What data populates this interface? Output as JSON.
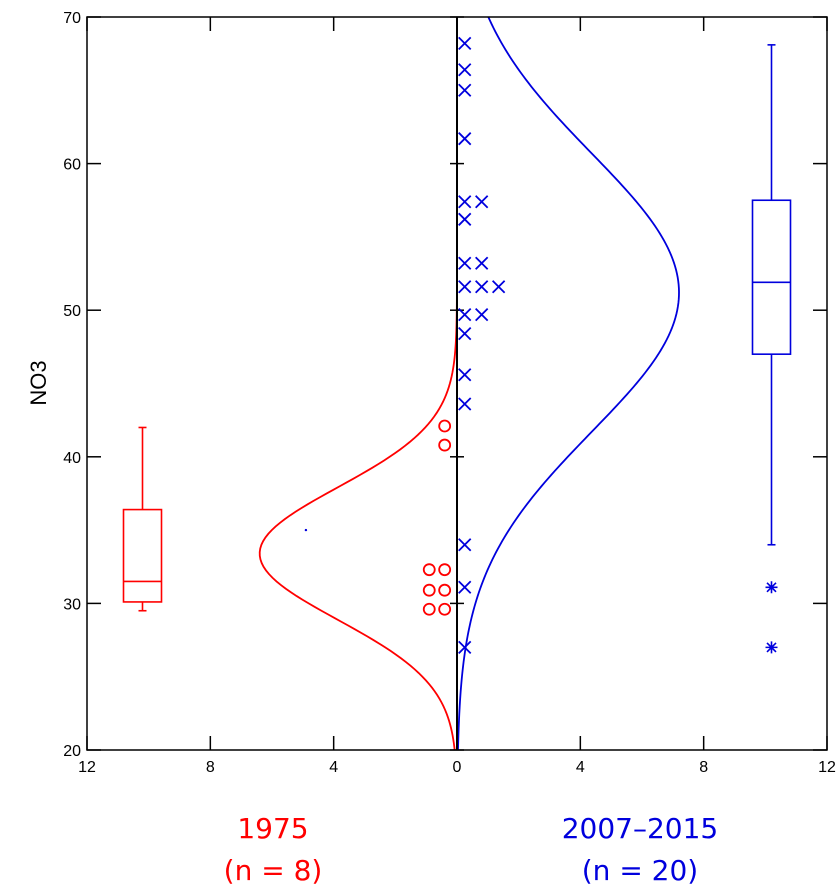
{
  "chart_data": {
    "type": "scatter",
    "ylabel": "NO3",
    "xlabel": "",
    "ylim": [
      20,
      70
    ],
    "y_ticks": [
      20,
      30,
      40,
      50,
      60,
      70
    ],
    "xlim_left": [
      12,
      0
    ],
    "xlim_right": [
      0,
      12
    ],
    "x_tick_labels": [
      "12",
      "8",
      "4",
      "0",
      "4",
      "8",
      "12"
    ],
    "groups": [
      {
        "name": "1975",
        "n_label": "(n = 8)",
        "color": "#ff0000",
        "side": "left",
        "marker": "circle",
        "points": [
          {
            "offset": 0.4,
            "y": 42.1
          },
          {
            "offset": 0.4,
            "y": 40.8
          },
          {
            "offset": 0.4,
            "y": 32.3
          },
          {
            "offset": 0.9,
            "y": 32.3
          },
          {
            "offset": 0.4,
            "y": 30.9
          },
          {
            "offset": 0.9,
            "y": 30.9
          },
          {
            "offset": 0.4,
            "y": 29.6
          },
          {
            "offset": 0.9,
            "y": 29.6
          }
        ],
        "density": {
          "mean": 33.4,
          "sd": 4.5,
          "peak": 6.4
        },
        "boxplot": {
          "x": 10.2,
          "min": 29.5,
          "q1": 30.1,
          "median": 31.5,
          "q3": 36.4,
          "max": 42.0,
          "outliers": []
        }
      },
      {
        "name": "2007–2015",
        "n_label": "(n = 20)",
        "color": "#0000dd",
        "side": "right",
        "marker": "x",
        "points": [
          {
            "offset": 0.25,
            "y": 68.2
          },
          {
            "offset": 0.25,
            "y": 66.4
          },
          {
            "offset": 0.25,
            "y": 65.0
          },
          {
            "offset": 0.25,
            "y": 61.7
          },
          {
            "offset": 0.25,
            "y": 57.4
          },
          {
            "offset": 0.8,
            "y": 57.4
          },
          {
            "offset": 0.25,
            "y": 56.2
          },
          {
            "offset": 0.25,
            "y": 53.2
          },
          {
            "offset": 0.8,
            "y": 53.2
          },
          {
            "offset": 0.25,
            "y": 51.6
          },
          {
            "offset": 0.8,
            "y": 51.6
          },
          {
            "offset": 1.35,
            "y": 51.6
          },
          {
            "offset": 0.25,
            "y": 49.7
          },
          {
            "offset": 0.8,
            "y": 49.7
          },
          {
            "offset": 0.25,
            "y": 48.4
          },
          {
            "offset": 0.25,
            "y": 45.6
          },
          {
            "offset": 0.25,
            "y": 43.6
          },
          {
            "offset": 0.25,
            "y": 34.0
          },
          {
            "offset": 0.25,
            "y": 31.1
          },
          {
            "offset": 0.25,
            "y": 27.0
          }
        ],
        "density": {
          "mean": 51.2,
          "sd": 9.5,
          "peak": 7.2
        },
        "boxplot": {
          "x": 10.2,
          "min": 34.0,
          "q1": 47.0,
          "median": 51.9,
          "q3": 57.5,
          "max": 68.1,
          "outliers": [
            31.1,
            27.0
          ]
        }
      }
    ],
    "stray_mark": {
      "offset": 4.9,
      "y": 35.0,
      "side": "left",
      "color": "#0000dd"
    }
  }
}
